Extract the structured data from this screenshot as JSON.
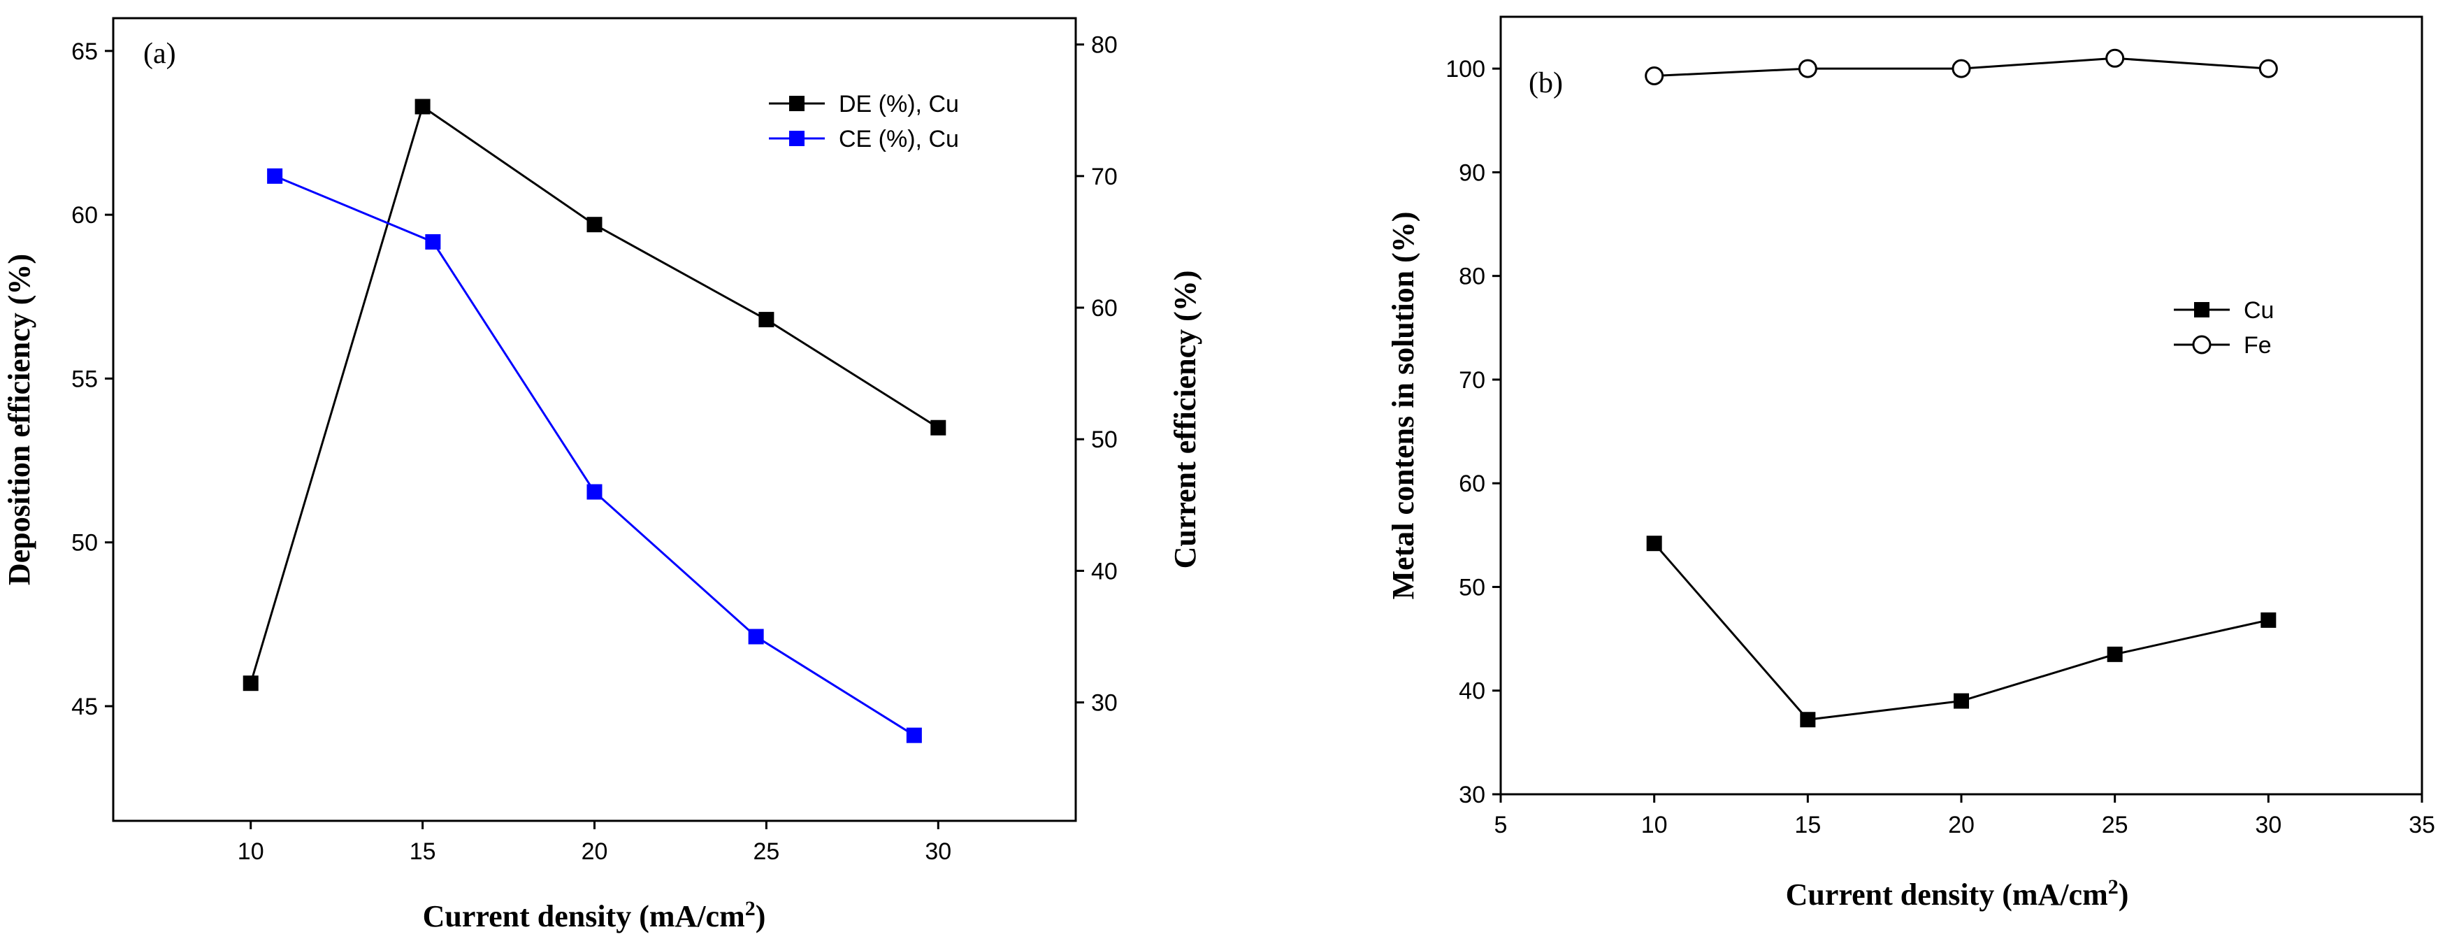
{
  "chart_data": [
    {
      "type": "line",
      "panel_label": "(a)",
      "xlabel": "Current density (mA/cm",
      "xlabel_sup": "2",
      "xlabel_end": ")",
      "ylabel": "Deposition efficiency (%)",
      "y2label": "Current efficiency (%)",
      "xlim": [
        6,
        34
      ],
      "ylim": [
        41.5,
        66
      ],
      "y2lim": [
        21,
        82
      ],
      "xticks": [
        10,
        15,
        20,
        25,
        30
      ],
      "yticks": [
        45,
        50,
        55,
        60,
        65
      ],
      "y2ticks": [
        30,
        40,
        50,
        60,
        70,
        80
      ],
      "legend_position": "top-right",
      "series": [
        {
          "name": "DE (%), Cu",
          "axis": "left",
          "color": "#000000",
          "marker": "filled-square",
          "x": [
            10,
            15,
            20,
            25,
            30
          ],
          "y": [
            45.7,
            63.3,
            59.7,
            56.8,
            53.5
          ]
        },
        {
          "name": "CE (%), Cu",
          "axis": "right",
          "color": "#0000ff",
          "marker": "filled-square",
          "x": [
            10.7,
            15.3,
            20,
            24.7,
            29.3
          ],
          "y": [
            70,
            65,
            46,
            35,
            27.5
          ]
        }
      ]
    },
    {
      "type": "line",
      "panel_label": "(b)",
      "xlabel": "Current density (mA/cm",
      "xlabel_sup": "2",
      "xlabel_end": ")",
      "ylabel": "Metal contens in solution (%)",
      "xlim": [
        5,
        35
      ],
      "ylim": [
        30,
        105
      ],
      "xticks": [
        5,
        10,
        15,
        20,
        25,
        30,
        35
      ],
      "yticks": [
        30,
        40,
        50,
        60,
        70,
        80,
        90,
        100
      ],
      "legend_position": "right",
      "series": [
        {
          "name": "Cu",
          "color": "#000000",
          "marker": "filled-square",
          "x": [
            10,
            15,
            20,
            25,
            30
          ],
          "y": [
            54.2,
            37.2,
            39,
            43.5,
            46.8
          ]
        },
        {
          "name": "Fe",
          "color": "#000000",
          "marker": "open-circle",
          "x": [
            10,
            15,
            20,
            25,
            30
          ],
          "y": [
            99.3,
            100,
            100,
            101,
            100
          ]
        }
      ]
    }
  ]
}
